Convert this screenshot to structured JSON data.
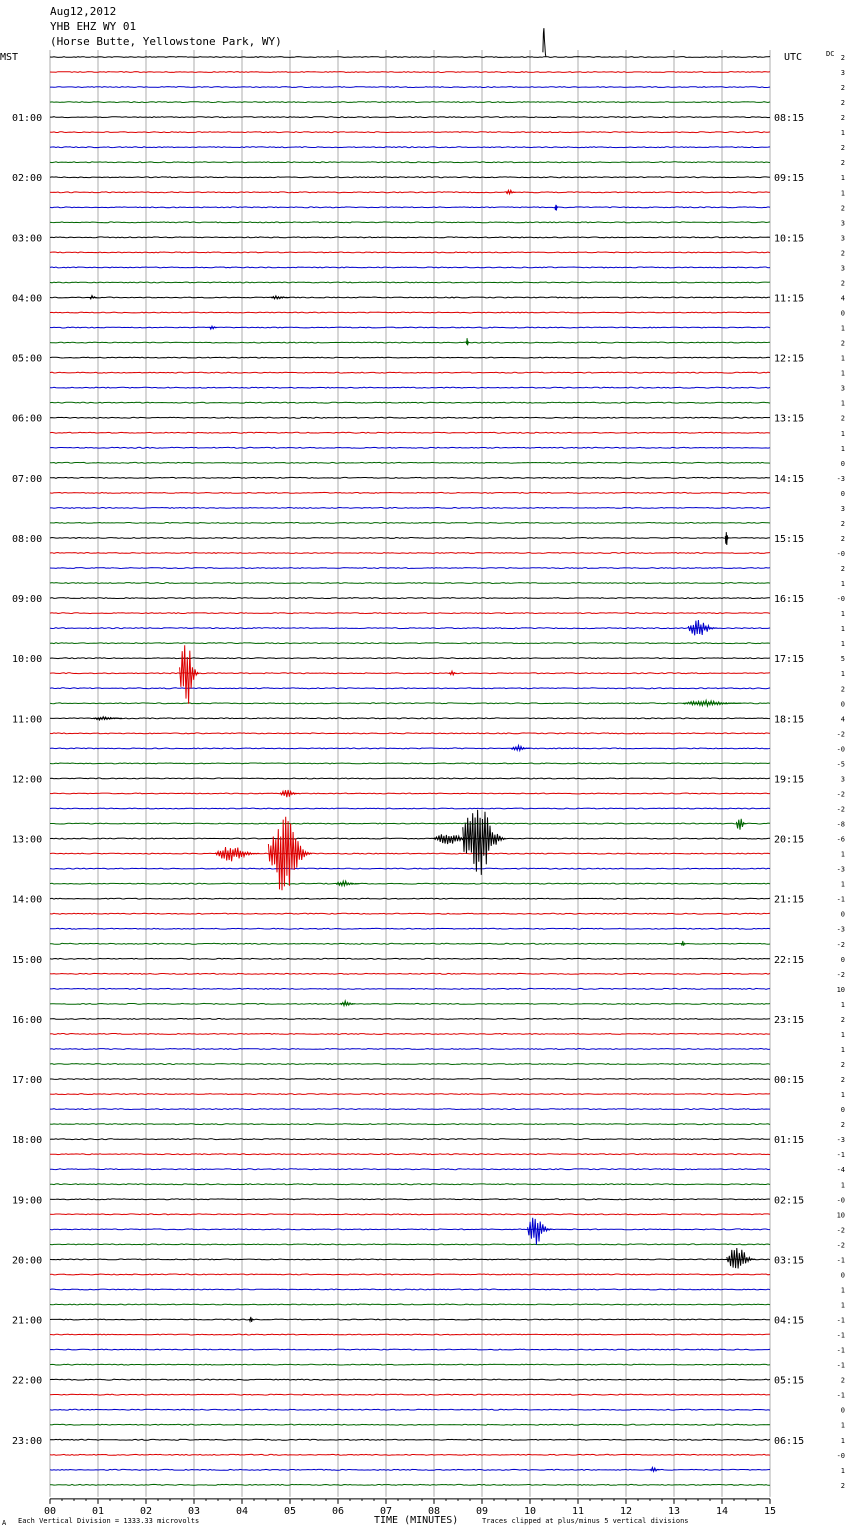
{
  "header": {
    "date": "Aug12,2012",
    "station": "YHB EHZ WY 01",
    "location": "(Horse Butte, Yellowstone Park, WY)"
  },
  "left_tz": "MST",
  "right_tz": "UTC",
  "dc_label": "DC",
  "footer": {
    "scale_note": "Each Vertical Division = 1333.33 microvolts",
    "xlabel": "TIME (MINUTES)",
    "clip_note": "Traces clipped at plus/minus 5 vertical divisions",
    "corner_mark": "A"
  },
  "colors": {
    "trace_cycle": [
      "#000000",
      "#dd0000",
      "#0000cc",
      "#006600"
    ],
    "grid": "#9a9a9a"
  },
  "chart_data": {
    "type": "line",
    "title": "YHB EHZ WY 01",
    "xlabel": "TIME (MINUTES)",
    "xlim": [
      0,
      15
    ],
    "x_ticks": [
      "00",
      "01",
      "02",
      "03",
      "04",
      "05",
      "06",
      "07",
      "08",
      "09",
      "10",
      "11",
      "12",
      "13",
      "14",
      "15"
    ],
    "rows_per_hour": 4,
    "minutes_per_row": 15,
    "row_count": 96,
    "left_hour_labels": [
      "01:00",
      "02:00",
      "03:00",
      "04:00",
      "05:00",
      "06:00",
      "07:00",
      "08:00",
      "09:00",
      "10:00",
      "11:00",
      "12:00",
      "13:00",
      "14:00",
      "15:00",
      "16:00",
      "17:00",
      "18:00",
      "19:00",
      "20:00",
      "21:00",
      "22:00",
      "23:00"
    ],
    "right_hour_labels": [
      "08:15",
      "09:15",
      "10:15",
      "11:15",
      "12:15",
      "13:15",
      "14:15",
      "15:15",
      "16:15",
      "17:15",
      "18:15",
      "19:15",
      "20:15",
      "21:15",
      "22:15",
      "23:15",
      "00:15",
      "01:15",
      "02:15",
      "03:15",
      "04:15",
      "05:15",
      "06:15"
    ],
    "dc_offsets": [
      "2",
      "3",
      "2",
      "2",
      "2",
      "1",
      "2",
      "2",
      "1",
      "1",
      "2",
      "3",
      "3",
      "2",
      "3",
      "2",
      "4",
      "0",
      "1",
      "2",
      "1",
      "1",
      "3",
      "1",
      "2",
      "1",
      "1",
      "0",
      "-3",
      "0",
      "3",
      "2",
      "2",
      "-0",
      "2",
      "1",
      "-0",
      "1",
      "1",
      "1",
      "5",
      "1",
      "2",
      "0",
      "4",
      "-2",
      "-0",
      "-5",
      "3",
      "-2",
      "-2",
      "-8",
      "-6",
      "1",
      "-3",
      "1",
      "-1",
      "0",
      "-3",
      "-2",
      "0",
      "-2",
      "10",
      "1",
      "2",
      "1",
      "1",
      "2",
      "2",
      "1",
      "0",
      "2",
      "-3",
      "-1",
      "-4",
      "1",
      "-0",
      "10",
      "-2",
      "-2",
      "-1",
      "0",
      "1",
      "1",
      "-1",
      "-1",
      "-1",
      "-1",
      "2",
      "-1",
      "0",
      "1",
      "1",
      "-0",
      "1",
      "2"
    ],
    "events": [
      {
        "row": 0,
        "minute": 10.3,
        "amp": 40,
        "width": 0.03,
        "dir": "up"
      },
      {
        "row": 9,
        "minute": 9.6,
        "amp": 3,
        "width": 0.2
      },
      {
        "row": 10,
        "minute": 10.55,
        "amp": 5,
        "width": 0.03
      },
      {
        "row": 16,
        "minute": 0.9,
        "amp": 2,
        "width": 0.15
      },
      {
        "row": 16,
        "minute": 4.8,
        "amp": 2,
        "width": 0.4
      },
      {
        "row": 18,
        "minute": 3.4,
        "amp": 3,
        "width": 0.15
      },
      {
        "row": 19,
        "minute": 8.7,
        "amp": 5,
        "width": 0.03
      },
      {
        "row": 32,
        "minute": 14.1,
        "amp": 10,
        "width": 0.06
      },
      {
        "row": 38,
        "minute": 13.6,
        "amp": 9,
        "width": 0.6
      },
      {
        "row": 41,
        "minute": 2.9,
        "amp": 40,
        "width": 0.4
      },
      {
        "row": 41,
        "minute": 8.4,
        "amp": 4,
        "width": 0.15
      },
      {
        "row": 43,
        "minute": 13.8,
        "amp": 3,
        "width": 1.2
      },
      {
        "row": 44,
        "minute": 1.2,
        "amp": 2,
        "width": 0.6
      },
      {
        "row": 46,
        "minute": 9.8,
        "amp": 3,
        "width": 0.4
      },
      {
        "row": 49,
        "minute": 5.0,
        "amp": 4,
        "width": 0.4
      },
      {
        "row": 51,
        "minute": 14.4,
        "amp": 10,
        "width": 0.2
      },
      {
        "row": 52,
        "minute": 9.05,
        "amp": 40,
        "width": 0.9
      },
      {
        "row": 52,
        "minute": 8.4,
        "amp": 6,
        "width": 0.8
      },
      {
        "row": 53,
        "minute": 5.0,
        "amp": 40,
        "width": 0.9
      },
      {
        "row": 53,
        "minute": 3.9,
        "amp": 8,
        "width": 0.9
      },
      {
        "row": 55,
        "minute": 6.2,
        "amp": 3,
        "width": 0.5
      },
      {
        "row": 59,
        "minute": 13.2,
        "amp": 3,
        "width": 0.1
      },
      {
        "row": 63,
        "minute": 6.2,
        "amp": 3,
        "width": 0.3
      },
      {
        "row": 78,
        "minute": 10.2,
        "amp": 16,
        "width": 0.5
      },
      {
        "row": 80,
        "minute": 14.4,
        "amp": 14,
        "width": 0.6
      },
      {
        "row": 84,
        "minute": 4.2,
        "amp": 3,
        "width": 0.1
      },
      {
        "row": 94,
        "minute": 12.6,
        "amp": 3,
        "width": 0.2
      }
    ]
  }
}
